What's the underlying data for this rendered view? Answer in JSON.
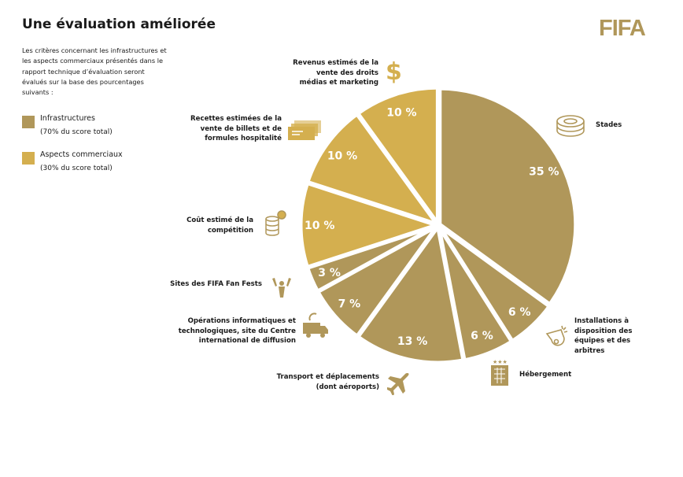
{
  "header": {
    "title": "Une évaluation améliorée",
    "logo_text": "FIFA"
  },
  "intro": "Les critères concernant les infrastructures et les aspects commerciaux présentés dans le rapport technique d’évaluation seront évalués sur la base des pourcentages suivants :",
  "legend": [
    {
      "label": "Infrastructures",
      "sub": "(70% du score total)",
      "color": "#B0975A"
    },
    {
      "label": "Aspects commerciaux",
      "sub": "(30% du score total)",
      "color": "#D4AF4F"
    }
  ],
  "chart_data": {
    "type": "pie",
    "start": "top, clockwise",
    "categories": [
      "Stades",
      "Installations à disposition des équipes et des arbitres",
      "Hébergement",
      "Transport et déplacements (dont aéroports)",
      "Opérations informatiques et technologiques, site du Centre international de diffusion",
      "Sites des FIFA Fan Fests",
      "Coût estimé de la compétition",
      "Recettes estimées de la vente de billets et de formules hospitalité",
      "Revenus estimés de la vente des droits médias et marketing"
    ],
    "values": [
      35,
      6,
      6,
      13,
      7,
      3,
      10,
      10,
      10
    ],
    "value_labels": [
      "35 %",
      "6 %",
      "6 %",
      "13 %",
      "7 %",
      "3 %",
      "10 %",
      "10 %",
      "10 %"
    ],
    "groups": [
      "Infrastructures",
      "Infrastructures",
      "Infrastructures",
      "Infrastructures",
      "Infrastructures",
      "Infrastructures",
      "Aspects commerciaux",
      "Aspects commerciaux",
      "Aspects commerciaux"
    ],
    "icons": [
      "stadium-icon",
      "whistle-icon",
      "hotel-icon",
      "airplane-icon",
      "broadcast-van-icon",
      "fans-icon",
      "coins-icon",
      "tickets-icon",
      "dollar-icon"
    ],
    "colors": {
      "Infrastructures": "#B0975A",
      "Aspects commerciaux": "#D4AF4F"
    }
  }
}
